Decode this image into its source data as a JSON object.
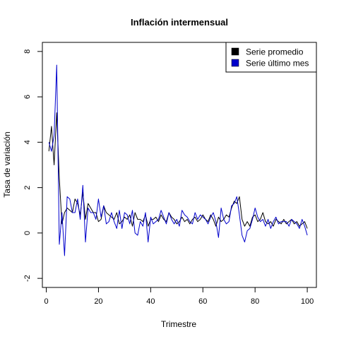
{
  "chart_data": {
    "type": "line",
    "title": "Inflación intermensual",
    "xlabel": "Trimestre",
    "ylabel": "Tasa de variación",
    "xlim": [
      -1.5,
      103.5
    ],
    "ylim": [
      -2.4,
      8.4
    ],
    "xticks": [
      0,
      20,
      40,
      60,
      80,
      100
    ],
    "yticks": [
      -2,
      0,
      2,
      4,
      6,
      8
    ],
    "grid": false,
    "legend_position": "top-right",
    "series": [
      {
        "name": "Serie promedio",
        "color": "#000000",
        "x": [
          1,
          2,
          3,
          4,
          5,
          6,
          7,
          8,
          9,
          10,
          11,
          12,
          13,
          14,
          15,
          16,
          17,
          18,
          19,
          20,
          21,
          22,
          23,
          24,
          25,
          26,
          27,
          28,
          29,
          30,
          31,
          32,
          33,
          34,
          35,
          36,
          37,
          38,
          39,
          40,
          41,
          42,
          43,
          44,
          45,
          46,
          47,
          48,
          49,
          50,
          51,
          52,
          53,
          54,
          55,
          56,
          57,
          58,
          59,
          60,
          61,
          62,
          63,
          64,
          65,
          66,
          67,
          68,
          69,
          70,
          71,
          72,
          73,
          74,
          75,
          76,
          77,
          78,
          79,
          80,
          81,
          82,
          83,
          84,
          85,
          86,
          87,
          88,
          89,
          90,
          91,
          92,
          93,
          94,
          95,
          96,
          97,
          98,
          99,
          100
        ],
        "values": [
          3.6,
          4.7,
          3.0,
          5.3,
          2.4,
          0.4,
          0.9,
          1.1,
          1.0,
          0.9,
          1.5,
          1.3,
          0.8,
          1.8,
          0.6,
          1.3,
          1.1,
          0.9,
          0.9,
          0.5,
          0.6,
          1.2,
          0.9,
          0.8,
          0.7,
          0.6,
          0.9,
          0.4,
          0.5,
          0.7,
          0.6,
          0.8,
          0.3,
          0.9,
          0.6,
          0.6,
          0.5,
          0.8,
          0.3,
          0.6,
          0.6,
          0.7,
          0.5,
          0.8,
          0.6,
          0.5,
          0.9,
          0.7,
          0.6,
          0.4,
          0.5,
          0.7,
          0.5,
          0.6,
          0.4,
          0.6,
          0.7,
          0.5,
          0.6,
          0.8,
          0.6,
          0.5,
          0.8,
          0.6,
          0.3,
          0.7,
          0.5,
          0.6,
          0.8,
          0.7,
          1.1,
          1.4,
          1.3,
          1.6,
          0.6,
          0.3,
          0.5,
          0.3,
          0.7,
          0.8,
          0.5,
          0.6,
          0.9,
          0.5,
          0.4,
          0.5,
          0.3,
          0.6,
          0.5,
          0.4,
          0.6,
          0.4,
          0.5,
          0.6,
          0.4,
          0.5,
          0.3,
          0.4,
          0.5,
          0.2
        ]
      },
      {
        "name": "Serie último mes",
        "color": "#0000cc",
        "x": [
          1,
          2,
          3,
          4,
          5,
          6,
          7,
          8,
          9,
          10,
          11,
          12,
          13,
          14,
          15,
          16,
          17,
          18,
          19,
          20,
          21,
          22,
          23,
          24,
          25,
          26,
          27,
          28,
          29,
          30,
          31,
          32,
          33,
          34,
          35,
          36,
          37,
          38,
          39,
          40,
          41,
          42,
          43,
          44,
          45,
          46,
          47,
          48,
          49,
          50,
          51,
          52,
          53,
          54,
          55,
          56,
          57,
          58,
          59,
          60,
          61,
          62,
          63,
          64,
          65,
          66,
          67,
          68,
          69,
          70,
          71,
          72,
          73,
          74,
          75,
          76,
          77,
          78,
          79,
          80,
          81,
          82,
          83,
          84,
          85,
          86,
          87,
          88,
          89,
          90,
          91,
          92,
          93,
          94,
          95,
          96,
          97,
          98,
          99,
          100
        ],
        "values": [
          4.0,
          3.6,
          4.3,
          7.4,
          -0.5,
          0.9,
          -1.0,
          1.6,
          1.5,
          0.9,
          0.9,
          1.5,
          0.6,
          2.1,
          -0.4,
          1.1,
          0.9,
          0.9,
          0.6,
          1.5,
          0.7,
          1.2,
          0.4,
          0.5,
          0.9,
          0.5,
          0.2,
          1.0,
          0.2,
          0.9,
          0.8,
          0.4,
          1.0,
          0.0,
          -0.1,
          0.5,
          0.3,
          0.9,
          -0.4,
          0.7,
          0.4,
          0.5,
          0.6,
          1.0,
          0.7,
          0.4,
          0.9,
          0.6,
          0.4,
          0.6,
          0.3,
          1.0,
          0.8,
          0.7,
          0.5,
          0.4,
          0.9,
          0.6,
          0.8,
          0.7,
          0.6,
          0.4,
          0.7,
          0.9,
          0.5,
          -0.2,
          1.1,
          0.6,
          0.4,
          0.5,
          1.2,
          1.3,
          1.6,
          0.8,
          -0.1,
          -0.4,
          0.1,
          0.2,
          0.6,
          1.1,
          0.7,
          0.5,
          0.6,
          0.3,
          0.6,
          0.2,
          0.5,
          0.7,
          0.4,
          0.5,
          0.5,
          0.5,
          0.3,
          0.6,
          0.5,
          0.4,
          0.2,
          0.6,
          0.3,
          -0.1
        ]
      }
    ]
  }
}
